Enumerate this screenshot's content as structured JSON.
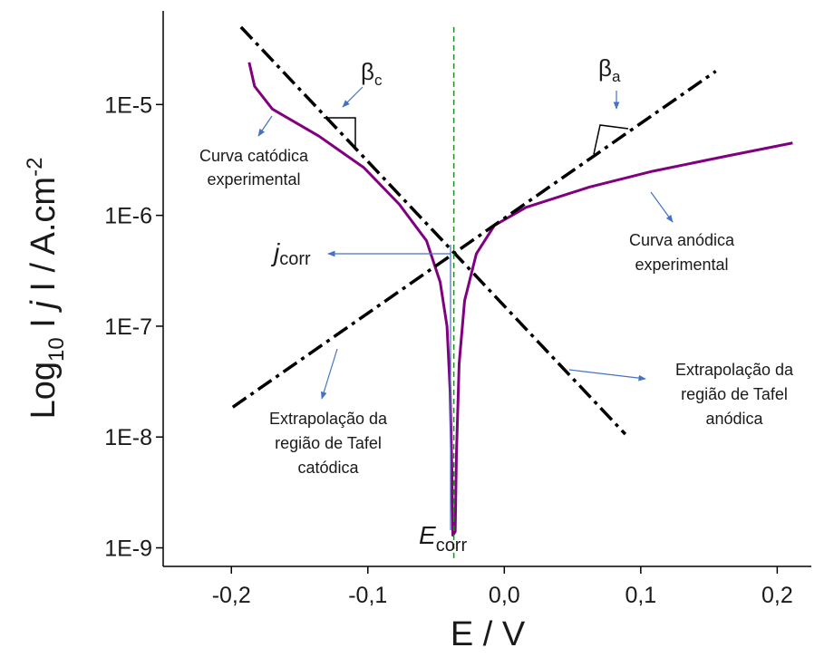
{
  "chart_data": {
    "type": "line",
    "xlabel": "E / V",
    "ylabel_parts": [
      "Log",
      "10",
      " I ",
      "j",
      " I / A.cm",
      "-2"
    ],
    "log_y": true,
    "xlim": [
      -0.25,
      0.225
    ],
    "ylim": [
      6.8e-10,
      7e-05
    ],
    "xticks": [
      {
        "value": -0.2,
        "label": "-0,2"
      },
      {
        "value": -0.1,
        "label": "-0,1"
      },
      {
        "value": 0.0,
        "label": "0,0"
      },
      {
        "value": 0.1,
        "label": "0,1"
      },
      {
        "value": 0.2,
        "label": "0,2"
      }
    ],
    "yticks": [
      {
        "value": 1e-09,
        "label": "1E-9"
      },
      {
        "value": 1e-08,
        "label": "1E-8"
      },
      {
        "value": 1e-07,
        "label": "1E-7"
      },
      {
        "value": 1e-06,
        "label": "1E-6"
      },
      {
        "value": 1e-05,
        "label": "1E-5"
      }
    ],
    "series": [
      {
        "color": "#800080",
        "style": "solid",
        "x": [
          -0.187,
          -0.183,
          -0.17,
          -0.136,
          -0.103,
          -0.077,
          -0.057,
          -0.047,
          -0.042,
          -0.0397,
          -0.0384,
          -0.0377,
          -0.036,
          -0.0351,
          -0.0331,
          -0.0291,
          -0.0205,
          -0.0073,
          0.0159,
          0.0623,
          0.1086,
          0.1616,
          0.2113
        ],
        "values": [
          2.4e-05,
          1.46e-05,
          9.1e-06,
          5.2e-06,
          2.7e-06,
          1.26e-06,
          5.9e-07,
          2.5e-07,
          1e-07,
          2.6e-08,
          4.8e-09,
          1.3e-09,
          1.4e-09,
          6.9e-09,
          4.6e-08,
          1.7e-07,
          4.5e-07,
          8.1e-07,
          1.18e-06,
          1.8e-06,
          2.5e-06,
          3.4e-06,
          4.5e-06
        ]
      },
      {
        "color": "#000000",
        "style": "dashdot",
        "x": [
          -0.193,
          0.0887
        ],
        "values": [
          5e-05,
          1.06e-08
        ]
      },
      {
        "color": "#000000",
        "style": "dashdot",
        "x": [
          -0.199,
          0.155
        ],
        "values": [
          1.86e-08,
          2e-05
        ]
      },
      {
        "color": "#228b22",
        "style": "dashed",
        "x": [
          -0.037,
          -0.037
        ],
        "values": [
          5e-05,
          7.5e-10
        ]
      }
    ],
    "annotations": {
      "beta_c": [
        "β",
        "c"
      ],
      "beta_a": [
        "β",
        "a"
      ],
      "j_corr": [
        "j",
        "corr"
      ],
      "e_corr": [
        "E",
        "corr"
      ],
      "cathodic_curve": [
        "Curva catódica",
        "experimental"
      ],
      "anodic_curve": [
        "Curva anódica",
        "experimental"
      ],
      "anodic_tafel": [
        "Extrapolação da",
        "região de Tafel",
        "anódica"
      ],
      "cathodic_tafel": [
        "Extrapolação da",
        "região de Tafel",
        "catódica"
      ]
    }
  }
}
